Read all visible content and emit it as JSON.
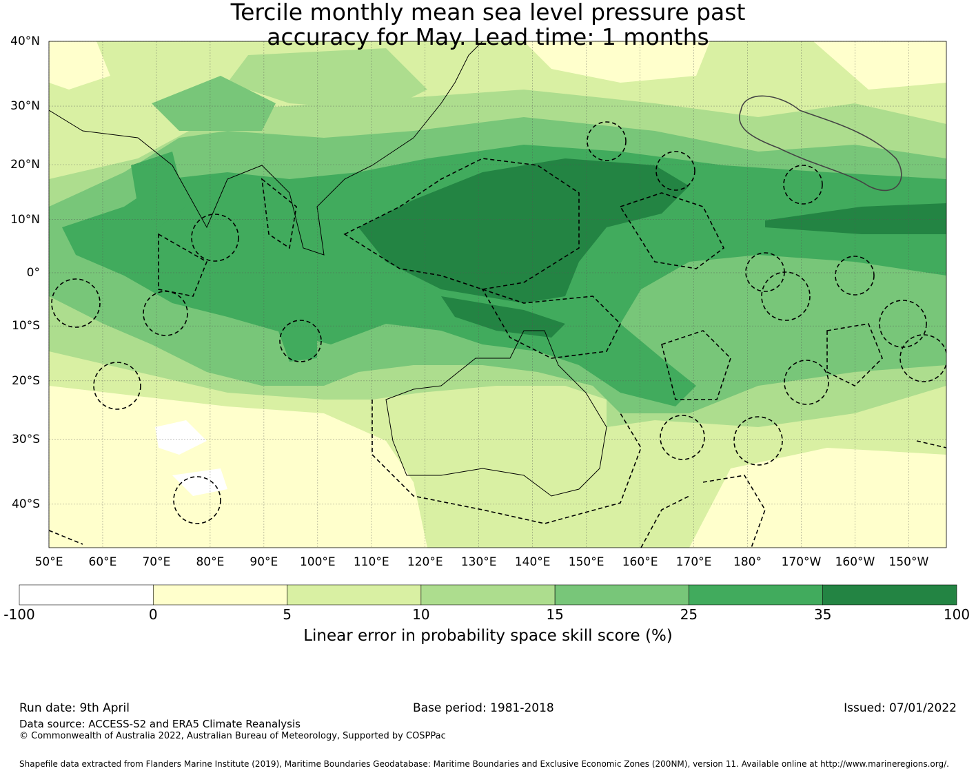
{
  "title": {
    "line1": "Tercile monthly mean sea level pressure past",
    "line2": "accuracy for May. Lead time: 1 months"
  },
  "map": {
    "lat_range": [
      -46,
      40
    ],
    "lon_range": [
      50,
      217
    ],
    "lat_ticks": [
      {
        "value": 40,
        "label": "40°N"
      },
      {
        "value": 30,
        "label": "30°N"
      },
      {
        "value": 20,
        "label": "20°N"
      },
      {
        "value": 10,
        "label": "10°N"
      },
      {
        "value": 0,
        "label": "0°"
      },
      {
        "value": -10,
        "label": "10°S"
      },
      {
        "value": -20,
        "label": "20°S"
      },
      {
        "value": -30,
        "label": "30°S"
      },
      {
        "value": -40,
        "label": "40°S"
      }
    ],
    "lon_ticks": [
      {
        "value": 50,
        "label": "50°E"
      },
      {
        "value": 60,
        "label": "60°E"
      },
      {
        "value": 70,
        "label": "70°E"
      },
      {
        "value": 80,
        "label": "80°E"
      },
      {
        "value": 90,
        "label": "90°E"
      },
      {
        "value": 100,
        "label": "100°E"
      },
      {
        "value": 110,
        "label": "110°E"
      },
      {
        "value": 120,
        "label": "120°E"
      },
      {
        "value": 130,
        "label": "130°E"
      },
      {
        "value": 140,
        "label": "140°E"
      },
      {
        "value": 150,
        "label": "150°E"
      },
      {
        "value": 160,
        "label": "160°E"
      },
      {
        "value": 170,
        "label": "170°E"
      },
      {
        "value": 180,
        "label": "180°"
      },
      {
        "value": 190,
        "label": "170°W"
      },
      {
        "value": 200,
        "label": "160°W"
      },
      {
        "value": 210,
        "label": "150°W"
      }
    ],
    "grid": true
  },
  "colorbar": {
    "label": "Linear error in probability space skill score (%)",
    "bins": [
      {
        "from": -100,
        "to": 0,
        "color": "#ffffff"
      },
      {
        "from": 0,
        "to": 5,
        "color": "#ffffcc"
      },
      {
        "from": 5,
        "to": 10,
        "color": "#d9f0a3"
      },
      {
        "from": 10,
        "to": 15,
        "color": "#addd8e"
      },
      {
        "from": 15,
        "to": 25,
        "color": "#78c679"
      },
      {
        "from": 25,
        "to": 35,
        "color": "#41ab5d"
      },
      {
        "from": 35,
        "to": 100,
        "color": "#238443"
      }
    ],
    "tick_labels": [
      "-100",
      "0",
      "5",
      "10",
      "15",
      "25",
      "35",
      "100"
    ]
  },
  "footer": {
    "run_date": "Run date: 9th April",
    "base_period": "Base period: 1981-2018",
    "issued": "Issued: 07/01/2022",
    "data_source": "Data source: ACCESS-S2 and ERA5 Climate Reanalysis",
    "copyright": "© Commonwealth of Australia 2022, Australian Bureau of Meteorology, Supported by COSPPac",
    "shapefile": "Shapefile data extracted from Flanders Marine Institute (2019), Maritime Boundaries Geodatabase: Maritime Boundaries and Exclusive Economic Zones (200NM), version 11. Available online at http://www.marineregions.org/."
  }
}
